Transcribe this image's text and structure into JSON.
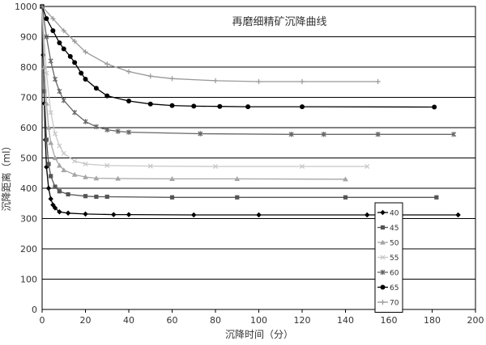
{
  "chart_data": {
    "type": "line",
    "title": "再磨细精矿沉降曲线",
    "xlabel": "沉降时间（分）",
    "ylabel": "沉降距离（ml）",
    "xlim": [
      0,
      200
    ],
    "ylim": [
      0,
      1000
    ],
    "xticks": [
      0,
      20,
      40,
      60,
      80,
      100,
      120,
      140,
      160,
      180,
      200
    ],
    "yticks": [
      0,
      100,
      200,
      300,
      400,
      500,
      600,
      700,
      800,
      900,
      1000
    ],
    "grid": "horizontal",
    "legend_position": "bottom-right",
    "series": [
      {
        "name": "40",
        "color": "#000000",
        "marker": "diamond",
        "points": [
          [
            0,
            1000
          ],
          [
            0.5,
            840
          ],
          [
            1,
            680
          ],
          [
            1.5,
            560
          ],
          [
            2,
            470
          ],
          [
            3,
            400
          ],
          [
            4,
            365
          ],
          [
            5,
            345
          ],
          [
            6,
            335
          ],
          [
            8,
            322
          ],
          [
            12,
            318
          ],
          [
            20,
            315
          ],
          [
            33,
            313
          ],
          [
            40,
            313
          ],
          [
            70,
            312
          ],
          [
            100,
            312
          ],
          [
            150,
            312
          ],
          [
            192,
            312
          ]
        ]
      },
      {
        "name": "45",
        "color": "#555555",
        "marker": "square",
        "points": [
          [
            0,
            1000
          ],
          [
            1,
            720
          ],
          [
            2,
            560
          ],
          [
            3,
            480
          ],
          [
            4,
            440
          ],
          [
            6,
            405
          ],
          [
            8,
            390
          ],
          [
            12,
            380
          ],
          [
            20,
            374
          ],
          [
            25,
            372
          ],
          [
            30,
            372
          ],
          [
            60,
            370
          ],
          [
            90,
            370
          ],
          [
            140,
            370
          ],
          [
            182,
            370
          ]
        ]
      },
      {
        "name": "50",
        "color": "#a6a6a6",
        "marker": "triangle",
        "points": [
          [
            0,
            1000
          ],
          [
            1,
            800
          ],
          [
            2,
            680
          ],
          [
            3,
            600
          ],
          [
            4,
            550
          ],
          [
            6,
            500
          ],
          [
            8,
            475
          ],
          [
            10,
            460
          ],
          [
            15,
            445
          ],
          [
            20,
            437
          ],
          [
            25,
            433
          ],
          [
            35,
            432
          ],
          [
            60,
            431
          ],
          [
            90,
            431
          ],
          [
            140,
            430
          ]
        ]
      },
      {
        "name": "55",
        "color": "#c8c8c8",
        "marker": "x",
        "points": [
          [
            0,
            1000
          ],
          [
            2,
            780
          ],
          [
            4,
            650
          ],
          [
            6,
            580
          ],
          [
            8,
            540
          ],
          [
            10,
            515
          ],
          [
            15,
            490
          ],
          [
            20,
            480
          ],
          [
            30,
            475
          ],
          [
            50,
            473
          ],
          [
            80,
            472
          ],
          [
            120,
            472
          ],
          [
            150,
            472
          ]
        ]
      },
      {
        "name": "60",
        "color": "#666666",
        "marker": "star",
        "points": [
          [
            0,
            1000
          ],
          [
            2,
            900
          ],
          [
            4,
            820
          ],
          [
            6,
            760
          ],
          [
            8,
            720
          ],
          [
            10,
            690
          ],
          [
            15,
            650
          ],
          [
            20,
            620
          ],
          [
            25,
            603
          ],
          [
            30,
            593
          ],
          [
            35,
            588
          ],
          [
            40,
            585
          ],
          [
            73,
            580
          ],
          [
            115,
            578
          ],
          [
            130,
            578
          ],
          [
            155,
            578
          ],
          [
            190,
            578
          ]
        ]
      },
      {
        "name": "65",
        "color": "#000000",
        "marker": "circle",
        "points": [
          [
            0,
            1000
          ],
          [
            2,
            960
          ],
          [
            5,
            920
          ],
          [
            8,
            880
          ],
          [
            10,
            860
          ],
          [
            13,
            835
          ],
          [
            15,
            815
          ],
          [
            18,
            780
          ],
          [
            20,
            760
          ],
          [
            25,
            730
          ],
          [
            30,
            705
          ],
          [
            40,
            688
          ],
          [
            50,
            678
          ],
          [
            60,
            673
          ],
          [
            70,
            671
          ],
          [
            82,
            670
          ],
          [
            95,
            669
          ],
          [
            120,
            669
          ],
          [
            181,
            668
          ]
        ]
      },
      {
        "name": "70",
        "color": "#999999",
        "marker": "plus",
        "points": [
          [
            0,
            1000
          ],
          [
            5,
            960
          ],
          [
            10,
            920
          ],
          [
            15,
            885
          ],
          [
            20,
            850
          ],
          [
            30,
            810
          ],
          [
            40,
            785
          ],
          [
            50,
            770
          ],
          [
            60,
            762
          ],
          [
            80,
            755
          ],
          [
            100,
            752
          ],
          [
            120,
            752
          ],
          [
            155,
            752
          ]
        ]
      }
    ]
  }
}
